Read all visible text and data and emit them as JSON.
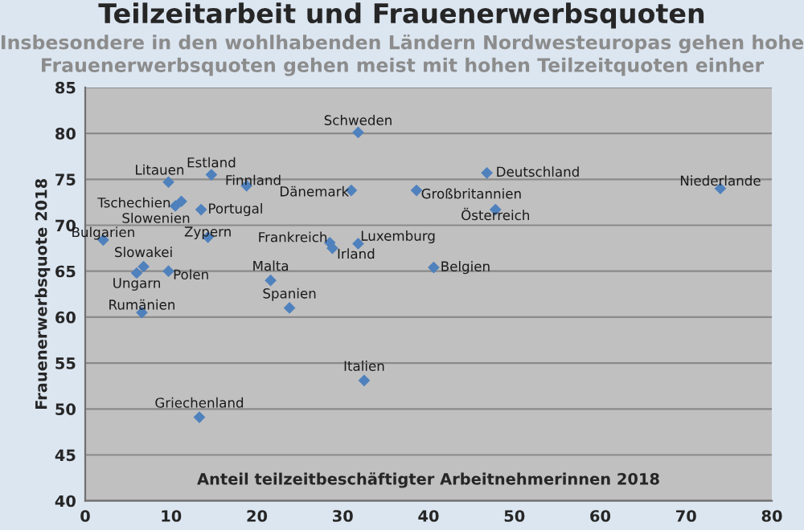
{
  "chart_data": {
    "type": "scatter",
    "title": "Teilzeitarbeit und Frauenerwerbsquoten",
    "subtitle": "Insbesondere in den wohlhabenden Ländern Nordwesteuropas gehen hohe\nFrauenerwerbsquoten gehen meist mit hohen Teilzeitquoten einher",
    "xlabel": "Anteil teilzeitbeschäftigter Arbeitnehmerinnen 2018",
    "ylabel": "Frauenerwerbsquote 2018",
    "x": [
      31.8,
      9.7,
      14.7,
      18.8,
      31.0,
      38.6,
      46.8,
      74.0,
      47.8,
      10.5,
      11.2,
      13.5,
      2.1,
      14.3,
      6.8,
      6.0,
      9.7,
      21.6,
      28.5,
      28.8,
      31.8,
      23.8,
      6.6,
      32.5,
      13.3,
      40.6
    ],
    "series": [
      {
        "color": "#4f81bd",
        "values": [
          80.1,
          74.7,
          75.5,
          74.3,
          73.8,
          73.8,
          75.7,
          74.0,
          71.7,
          72.1,
          72.6,
          71.7,
          68.4,
          68.7,
          65.5,
          64.8,
          65.0,
          64.0,
          68.1,
          67.5,
          68.0,
          61.0,
          60.5,
          53.1,
          49.1,
          65.4
        ]
      }
    ],
    "annotations": [
      {
        "text": "Schweden",
        "x": 31.8,
        "y": 80.1
      },
      {
        "text": "Litauen",
        "x": 9.7,
        "y": 74.7
      },
      {
        "text": "Estland",
        "x": 14.7,
        "y": 75.5
      },
      {
        "text": "Finnland",
        "x": 18.8,
        "y": 74.3
      },
      {
        "text": "Dänemark",
        "x": 31.0,
        "y": 73.8
      },
      {
        "text": "Großbritannien",
        "x": 38.6,
        "y": 73.8
      },
      {
        "text": "Deutschland",
        "x": 46.8,
        "y": 75.7
      },
      {
        "text": "Niederlande",
        "x": 74.0,
        "y": 74.0
      },
      {
        "text": "Österreich",
        "x": 47.8,
        "y": 71.7
      },
      {
        "text": "Tschechien",
        "x": 10.5,
        "y": 72.1
      },
      {
        "text": "Slowenien",
        "x": 11.2,
        "y": 72.6
      },
      {
        "text": "Portugal",
        "x": 13.5,
        "y": 71.7
      },
      {
        "text": "Bulgarien",
        "x": 2.1,
        "y": 68.4
      },
      {
        "text": "Zypern",
        "x": 14.3,
        "y": 68.7
      },
      {
        "text": "Slowakei",
        "x": 6.8,
        "y": 65.5
      },
      {
        "text": "Ungarn",
        "x": 6.0,
        "y": 64.8
      },
      {
        "text": "Polen",
        "x": 9.7,
        "y": 65.0
      },
      {
        "text": "Malta",
        "x": 21.6,
        "y": 64.0
      },
      {
        "text": "Frankreich",
        "x": 28.5,
        "y": 68.1
      },
      {
        "text": "Irland",
        "x": 28.8,
        "y": 67.5
      },
      {
        "text": "Luxemburg",
        "x": 31.8,
        "y": 68.0
      },
      {
        "text": "Spanien",
        "x": 23.8,
        "y": 61.0
      },
      {
        "text": "Rumänien",
        "x": 6.6,
        "y": 60.5
      },
      {
        "text": "Italien",
        "x": 32.5,
        "y": 53.1
      },
      {
        "text": "Griechenland",
        "x": 13.3,
        "y": 49.1
      },
      {
        "text": "Belgien",
        "x": 40.6,
        "y": 65.4
      }
    ],
    "xlim": [
      0,
      80
    ],
    "xticks": [
      0,
      10,
      20,
      30,
      40,
      50,
      60,
      70,
      80
    ],
    "ylim": [
      40,
      85
    ],
    "yticks": [
      40,
      45,
      50,
      55,
      60,
      65,
      70,
      75,
      80,
      85
    ],
    "grid": "y",
    "marker": "diamond",
    "legend": false
  }
}
